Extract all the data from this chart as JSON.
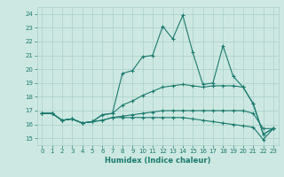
{
  "xlabel": "Humidex (Indice chaleur)",
  "xlim": [
    -0.5,
    23.5
  ],
  "ylim": [
    14.5,
    24.5
  ],
  "yticks": [
    15,
    16,
    17,
    18,
    19,
    20,
    21,
    22,
    23,
    24
  ],
  "xticks": [
    0,
    1,
    2,
    3,
    4,
    5,
    6,
    7,
    8,
    9,
    10,
    11,
    12,
    13,
    14,
    15,
    16,
    17,
    18,
    19,
    20,
    21,
    22,
    23
  ],
  "bg_color": "#cde8e2",
  "grid_color": "#a8cfc8",
  "line_color": "#1a7a6e",
  "lines": [
    [
      16.8,
      16.8,
      16.3,
      16.4,
      16.1,
      16.2,
      16.7,
      16.8,
      19.7,
      19.9,
      20.9,
      21.0,
      23.1,
      22.2,
      23.9,
      21.2,
      18.9,
      19.0,
      21.7,
      19.5,
      18.7,
      17.5,
      15.3,
      15.7
    ],
    [
      16.8,
      16.8,
      16.3,
      16.4,
      16.1,
      16.2,
      16.7,
      16.8,
      17.4,
      17.7,
      18.1,
      18.4,
      18.7,
      18.8,
      18.9,
      18.8,
      18.7,
      18.8,
      18.8,
      18.8,
      18.7,
      17.5,
      15.3,
      15.7
    ],
    [
      16.8,
      16.8,
      16.3,
      16.4,
      16.1,
      16.2,
      16.3,
      16.5,
      16.6,
      16.7,
      16.8,
      16.9,
      17.0,
      17.0,
      17.0,
      17.0,
      17.0,
      17.0,
      17.0,
      17.0,
      17.0,
      16.8,
      15.7,
      15.7
    ],
    [
      16.8,
      16.8,
      16.3,
      16.4,
      16.1,
      16.2,
      16.3,
      16.5,
      16.5,
      16.5,
      16.5,
      16.5,
      16.5,
      16.5,
      16.5,
      16.4,
      16.3,
      16.2,
      16.1,
      16.0,
      15.9,
      15.8,
      14.9,
      15.7
    ]
  ]
}
